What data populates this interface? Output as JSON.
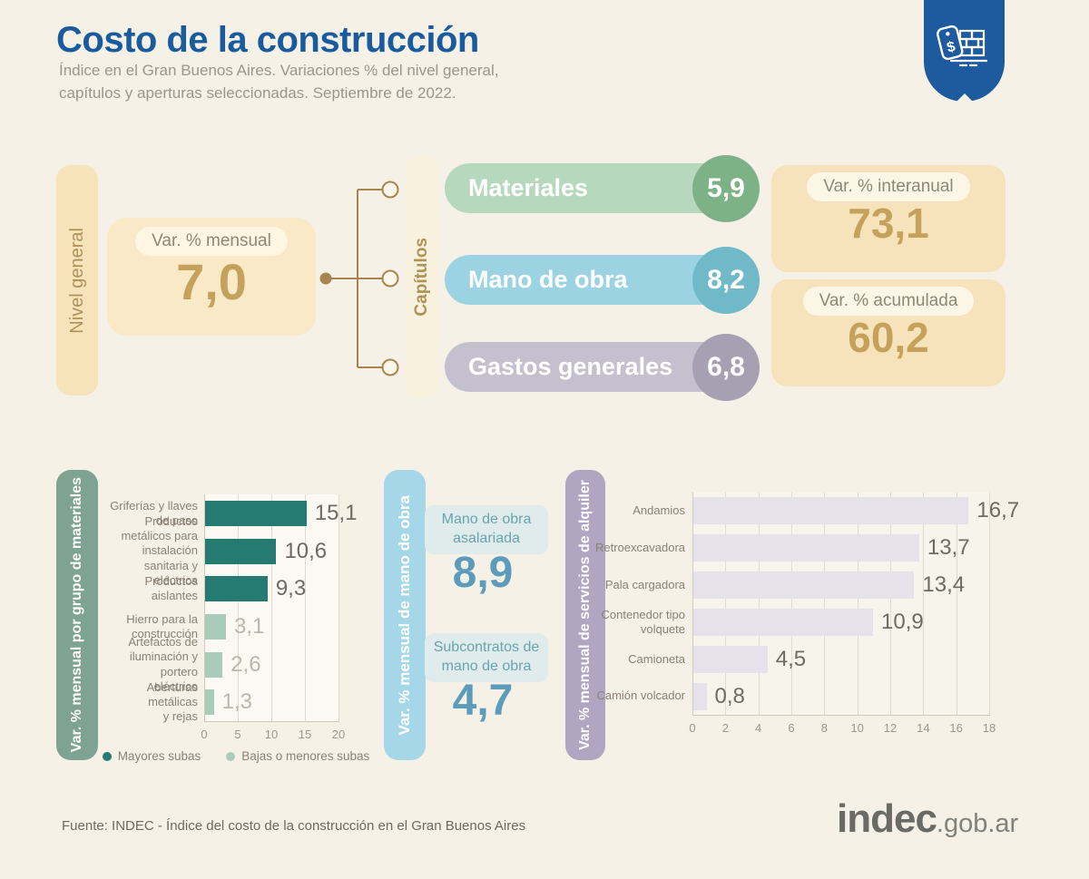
{
  "header": {
    "title": "Costo de la construcción",
    "subtitle": "Índice en el Gran Buenos Aires. Variaciones % del nivel general,\ncapítulos y aperturas seleccionadas. Septiembre de 2022."
  },
  "colors": {
    "title_blue": "#1a5b9d",
    "badge_blue": "#1d5a9e",
    "tan_accent": "#c5a25c",
    "materials_green": "#7fa392",
    "labor_blue": "#a6d7e8",
    "rentals_purple": "#b2a5c1"
  },
  "top": {
    "nivel_general_label": "Nivel general",
    "mensual": {
      "label": "Var. % mensual",
      "value": "7,0"
    },
    "capitulos_label": "Capítulos",
    "capitulos": [
      {
        "name": "Materiales",
        "value": "5,9",
        "pill_color": "#b6d8bc",
        "circle_color": "#7cb286"
      },
      {
        "name": "Mano de obra",
        "value": "8,2",
        "pill_color": "#9bd3e2",
        "circle_color": "#6fb9c9"
      },
      {
        "name": "Gastos generales",
        "value": "6,8",
        "pill_color": "#c5c0ce",
        "circle_color": "#a79fb2"
      }
    ],
    "interanual": {
      "label": "Var. % interanual",
      "value": "73,1"
    },
    "acumulada": {
      "label": "Var. % acumulada",
      "value": "60,2"
    }
  },
  "chart_data": [
    {
      "type": "bar",
      "orientation": "horizontal",
      "title": "Var. % mensual por grupo de materiales",
      "categories": [
        "Griferías y llaves\nde paso",
        "Productos metálicos para\ninstalación sanitaria y\neléctrica",
        "Productos aislantes",
        "Hierro para la\nconstrucción",
        "Artefactos de\niluminación y portero\neléctrico",
        "Aberturas metálicas\ny rejas"
      ],
      "values": [
        15.1,
        10.6,
        9.3,
        3.1,
        2.6,
        1.3
      ],
      "value_labels": [
        "15,1",
        "10,6",
        "9,3",
        "3,1",
        "2,6",
        "1,3"
      ],
      "highlight": [
        true,
        true,
        true,
        false,
        false,
        false
      ],
      "bar_color_major": "#257a72",
      "bar_color_minor": "#a9ccb9",
      "value_color_major": "#6e6b62",
      "value_color_minor": "#bab7ab",
      "xlim": [
        0,
        20
      ],
      "xticks": [
        "0",
        "5",
        "10",
        "15",
        "20"
      ],
      "grid": true,
      "legend_position": "bottom",
      "legend": [
        {
          "label": "Mayores subas",
          "color": "#257a72"
        },
        {
          "label": "Bajas o menores subas",
          "color": "#a9ccb9"
        }
      ]
    },
    {
      "type": "table",
      "title": "Var. % mensual de mano de obra",
      "stats": [
        {
          "label": "Mano de obra asalariada",
          "value": "8,9"
        },
        {
          "label": "Subcontratos de\nmano de obra",
          "value": "4,7"
        }
      ]
    },
    {
      "type": "bar",
      "orientation": "horizontal",
      "title": "Var. % mensual de servicios de alquiler",
      "categories": [
        "Andamios",
        "Retroexcavadora",
        "Pala cargadora",
        "Contenedor tipo\nvolquete",
        "Camioneta",
        "Camión volcador"
      ],
      "values": [
        16.7,
        13.7,
        13.4,
        10.9,
        4.5,
        0.8
      ],
      "value_labels": [
        "16,7",
        "13,7",
        "13,4",
        "10,9",
        "4,5",
        "0,8"
      ],
      "bar_color": "#e6e2eb",
      "value_color": "#6e6b62",
      "xlim": [
        0,
        18
      ],
      "xticks": [
        "0",
        "2",
        "4",
        "6",
        "8",
        "10",
        "12",
        "14",
        "16",
        "18"
      ],
      "grid": true
    }
  ],
  "footer": {
    "source": "Fuente: INDEC - Índice del costo de la construcción en el Gran Buenos Aires",
    "logo_main": "indec",
    "logo_suffix": ".gob.ar"
  }
}
